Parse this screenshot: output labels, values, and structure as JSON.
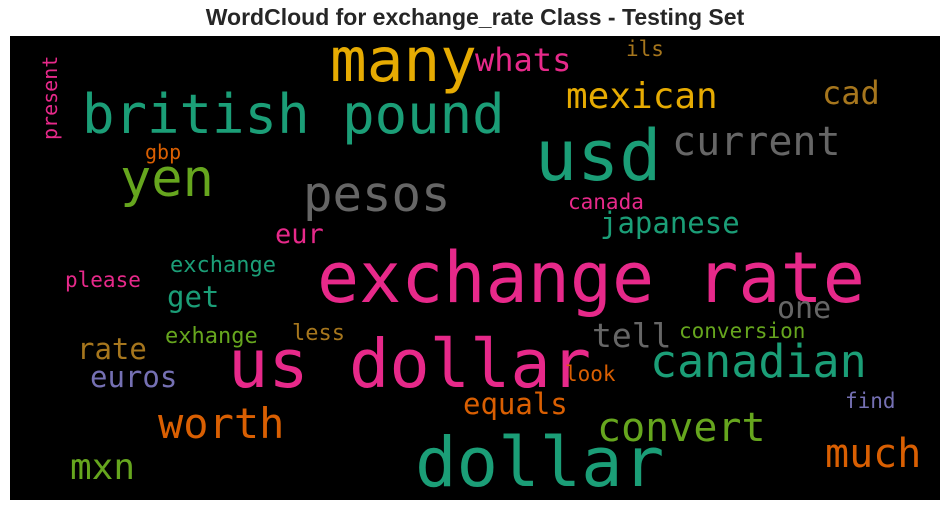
{
  "title": "WordCloud for exchange_rate Class - Testing Set",
  "colors": {
    "pink": "#e7298a",
    "teal": "#1b9e77",
    "orange": "#d95f02",
    "gold": "#e6ab02",
    "green": "#66a61e",
    "gray": "#666666",
    "brown": "#a6761d",
    "purple": "#7570b3"
  },
  "words": [
    {
      "text": "exchange rate",
      "color": "pink"
    },
    {
      "text": "us dollar",
      "color": "pink"
    },
    {
      "text": "dollar",
      "color": "teal"
    },
    {
      "text": "usd",
      "color": "teal"
    },
    {
      "text": "many",
      "color": "gold"
    },
    {
      "text": "british pound",
      "color": "teal"
    },
    {
      "text": "yen",
      "color": "green"
    },
    {
      "text": "pesos",
      "color": "gray"
    },
    {
      "text": "canadian",
      "color": "teal"
    },
    {
      "text": "current",
      "color": "gray"
    },
    {
      "text": "mexican",
      "color": "gold"
    },
    {
      "text": "worth",
      "color": "orange"
    },
    {
      "text": "convert",
      "color": "green"
    },
    {
      "text": "much",
      "color": "orange"
    },
    {
      "text": "mxn",
      "color": "green"
    },
    {
      "text": "whats",
      "color": "pink"
    },
    {
      "text": "cad",
      "color": "brown"
    },
    {
      "text": "japanese",
      "color": "teal"
    },
    {
      "text": "euros",
      "color": "purple"
    },
    {
      "text": "rate",
      "color": "brown"
    },
    {
      "text": "get",
      "color": "teal"
    },
    {
      "text": "eur",
      "color": "pink"
    },
    {
      "text": "one",
      "color": "gray"
    },
    {
      "text": "tell",
      "color": "gray"
    },
    {
      "text": "equals",
      "color": "orange"
    },
    {
      "text": "exchange",
      "color": "teal"
    },
    {
      "text": "please",
      "color": "pink"
    },
    {
      "text": "exhange",
      "color": "green"
    },
    {
      "text": "less",
      "color": "brown"
    },
    {
      "text": "conversion",
      "color": "green"
    },
    {
      "text": "look",
      "color": "orange"
    },
    {
      "text": "find",
      "color": "purple"
    },
    {
      "text": "canada",
      "color": "pink"
    },
    {
      "text": "gbp",
      "color": "orange"
    },
    {
      "text": "ils",
      "color": "brown"
    },
    {
      "text": "present",
      "color": "pink"
    }
  ]
}
